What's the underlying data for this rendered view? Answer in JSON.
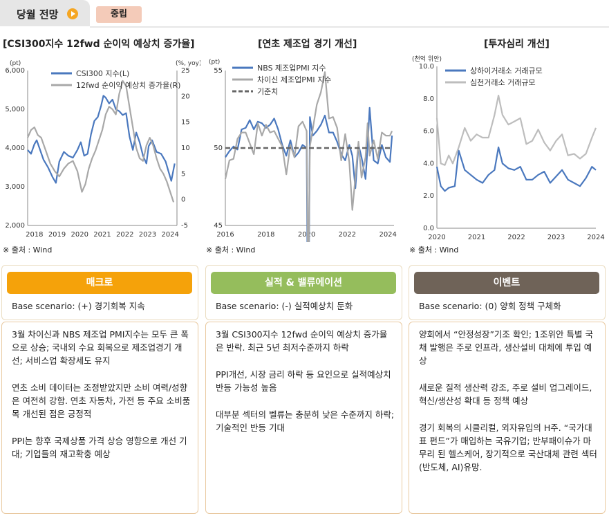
{
  "header": {
    "title": "당월 전망",
    "badge": "중립"
  },
  "charts": [
    {
      "title": "[CSI300지수 12fwd 순이익 예상치 증가율]",
      "source": "※ 출처 : Wind"
    },
    {
      "title": "[연초 제조업 경기 개선]",
      "source": "※ 출처 : Wind"
    },
    {
      "title": "[투자심리 개선]",
      "source": "※ 출처 : Wind"
    }
  ],
  "chart_data": [
    {
      "type": "line",
      "x_range": [
        2017.7,
        2024.3
      ],
      "xticks": [
        "2018",
        "2019",
        "2020",
        "2021",
        "2022",
        "2023",
        "2024"
      ],
      "left_axis": {
        "unit": "(pt)",
        "ticks": [
          "2,000",
          "3,000",
          "4,000",
          "5,000",
          "6,000"
        ],
        "ylim": [
          2000,
          6000
        ]
      },
      "right_axis": {
        "unit": "(%, yoy)",
        "ticks": [
          "-5",
          "0",
          "5",
          "10",
          "15",
          "20",
          "25"
        ],
        "ylim": [
          -5,
          25
        ]
      },
      "series": [
        {
          "name": "CSI300 지수(L)",
          "axis": "left",
          "color": "#4a78be",
          "x": [
            2017.7,
            2017.85,
            2018.0,
            2018.1,
            2018.25,
            2018.4,
            2018.6,
            2018.8,
            2018.95,
            2019.1,
            2019.3,
            2019.5,
            2019.7,
            2019.9,
            2020.05,
            2020.2,
            2020.35,
            2020.5,
            2020.65,
            2020.8,
            2020.95,
            2021.05,
            2021.15,
            2021.3,
            2021.45,
            2021.6,
            2021.75,
            2021.9,
            2022.05,
            2022.2,
            2022.35,
            2022.5,
            2022.65,
            2022.8,
            2022.95,
            2023.05,
            2023.2,
            2023.4,
            2023.6,
            2023.8,
            2023.95,
            2024.05,
            2024.2
          ],
          "y": [
            3950,
            3850,
            4100,
            4200,
            3950,
            3700,
            3500,
            3250,
            3100,
            3650,
            3900,
            3800,
            3750,
            3950,
            4150,
            3800,
            3850,
            4350,
            4700,
            4800,
            5100,
            5350,
            5300,
            5150,
            5250,
            5000,
            4950,
            4850,
            4900,
            4300,
            3950,
            4400,
            4150,
            3800,
            3600,
            4050,
            4200,
            3900,
            3850,
            3650,
            3350,
            3150,
            3600
          ]
        },
        {
          "name": "12fwd 순이익 예상치 증가율(R)",
          "axis": "right",
          "color": "#a8a8a8",
          "x": [
            2017.7,
            2017.85,
            2018.0,
            2018.15,
            2018.3,
            2018.5,
            2018.7,
            2018.9,
            2019.1,
            2019.3,
            2019.5,
            2019.7,
            2019.9,
            2020.1,
            2020.25,
            2020.4,
            2020.55,
            2020.7,
            2020.85,
            2021.0,
            2021.15,
            2021.3,
            2021.45,
            2021.6,
            2021.75,
            2021.9,
            2022.05,
            2022.2,
            2022.35,
            2022.5,
            2022.65,
            2022.8,
            2022.95,
            2023.1,
            2023.25,
            2023.4,
            2023.55,
            2023.7,
            2023.85,
            2024.0,
            2024.15
          ],
          "y": [
            12,
            13.5,
            14,
            12.5,
            12,
            9.5,
            7,
            5.5,
            4.5,
            6,
            7,
            7.5,
            5.5,
            1.5,
            3,
            6,
            8,
            9.5,
            11.5,
            13.5,
            16.5,
            18,
            17.5,
            16.5,
            20.5,
            23,
            22,
            18,
            14,
            10,
            8,
            7.5,
            10.5,
            12,
            10.5,
            8,
            6,
            5,
            3.5,
            1.5,
            -0.5
          ]
        }
      ]
    },
    {
      "type": "line",
      "x_range": [
        2016.0,
        2024.3
      ],
      "xticks": [
        "2016",
        "2018",
        "2020",
        "2022",
        "2024"
      ],
      "left_axis": {
        "unit": "(pt)",
        "ticks": [
          "45",
          "50",
          "55"
        ],
        "ylim": [
          45,
          55
        ]
      },
      "series": [
        {
          "name": "NBS 제조업PMI 지수",
          "color": "#4a78be",
          "x": [
            2016.0,
            2016.2,
            2016.4,
            2016.6,
            2016.8,
            2017.0,
            2017.2,
            2017.4,
            2017.6,
            2017.8,
            2018.0,
            2018.2,
            2018.4,
            2018.6,
            2018.8,
            2019.0,
            2019.2,
            2019.4,
            2019.6,
            2019.8,
            2020.0,
            2020.08,
            2020.16,
            2020.3,
            2020.5,
            2020.7,
            2020.9,
            2021.1,
            2021.3,
            2021.5,
            2021.7,
            2021.9,
            2022.1,
            2022.25,
            2022.4,
            2022.55,
            2022.7,
            2022.9,
            2023.0,
            2023.1,
            2023.3,
            2023.5,
            2023.7,
            2023.9,
            2024.1,
            2024.2
          ],
          "y": [
            49.4,
            49.8,
            50.1,
            49.9,
            51.2,
            51.3,
            51.8,
            51.2,
            51.7,
            51.6,
            51.3,
            51.5,
            51.9,
            51.2,
            50.2,
            49.5,
            50.5,
            49.4,
            49.7,
            50.2,
            50.0,
            35.7,
            52.0,
            50.8,
            51.1,
            51.5,
            52.1,
            51.0,
            51.0,
            50.4,
            49.6,
            49.2,
            50.2,
            49.5,
            47.4,
            50.2,
            49.4,
            48.0,
            50.1,
            52.6,
            49.2,
            49.0,
            50.2,
            49.4,
            49.1,
            50.8
          ]
        },
        {
          "name": "차이신 제조업PMI 지수",
          "color": "#a8a8a8",
          "x": [
            2016.0,
            2016.2,
            2016.4,
            2016.6,
            2016.8,
            2017.0,
            2017.2,
            2017.4,
            2017.6,
            2017.8,
            2018.0,
            2018.2,
            2018.4,
            2018.6,
            2018.8,
            2019.0,
            2019.2,
            2019.4,
            2019.6,
            2019.8,
            2020.0,
            2020.08,
            2020.16,
            2020.3,
            2020.5,
            2020.7,
            2020.9,
            2021.1,
            2021.3,
            2021.5,
            2021.7,
            2021.9,
            2022.1,
            2022.25,
            2022.4,
            2022.55,
            2022.7,
            2022.9,
            2023.0,
            2023.1,
            2023.3,
            2023.5,
            2023.7,
            2023.9,
            2024.1,
            2024.2
          ],
          "y": [
            48.0,
            49.2,
            49.3,
            50.6,
            51.0,
            51.0,
            50.3,
            49.6,
            51.6,
            50.8,
            51.5,
            51.0,
            51.1,
            50.6,
            50.1,
            48.3,
            50.2,
            49.4,
            51.4,
            51.7,
            51.1,
            40.3,
            50.1,
            51.2,
            52.8,
            53.6,
            54.9,
            51.9,
            52.0,
            51.3,
            49.2,
            50.9,
            49.1,
            46.0,
            48.1,
            50.4,
            48.1,
            49.4,
            51.6,
            49.5,
            50.5,
            49.3,
            51.0,
            50.8,
            50.8,
            51.1
          ]
        },
        {
          "name": "기준치",
          "color": "#666666",
          "dashed": true,
          "x": [
            2016.0,
            2024.2
          ],
          "y": [
            50,
            50
          ]
        }
      ]
    },
    {
      "type": "line",
      "x_range": [
        2020.0,
        2024.0
      ],
      "xticks": [
        "2020",
        "2021",
        "2022",
        "2023",
        "2024"
      ],
      "left_axis": {
        "unit": "(천억 위안)",
        "ticks": [
          "0.0",
          "2.0",
          "4.0",
          "6.0",
          "8.0",
          "10.0"
        ],
        "ylim": [
          0,
          10
        ]
      },
      "series": [
        {
          "name": "상하이거래소 거래규모",
          "color": "#4a78be",
          "x": [
            2020.0,
            2020.1,
            2020.2,
            2020.3,
            2020.45,
            2020.55,
            2020.7,
            2020.85,
            2021.0,
            2021.15,
            2021.3,
            2021.45,
            2021.55,
            2021.65,
            2021.8,
            2021.95,
            2022.1,
            2022.25,
            2022.4,
            2022.55,
            2022.7,
            2022.85,
            2023.0,
            2023.15,
            2023.3,
            2023.45,
            2023.6,
            2023.75,
            2023.9,
            2024.0
          ],
          "y": [
            3.8,
            2.6,
            2.3,
            2.5,
            2.6,
            4.8,
            3.6,
            3.3,
            3.0,
            2.8,
            3.3,
            3.6,
            5.0,
            4.0,
            3.7,
            3.6,
            3.8,
            3.0,
            3.0,
            3.3,
            3.5,
            2.8,
            3.2,
            3.6,
            3.0,
            2.8,
            2.6,
            3.1,
            3.8,
            3.6
          ]
        },
        {
          "name": "심천거래소 거래규모",
          "color": "#bdbdbd",
          "x": [
            2020.0,
            2020.1,
            2020.2,
            2020.3,
            2020.4,
            2020.55,
            2020.7,
            2020.85,
            2021.0,
            2021.15,
            2021.3,
            2021.45,
            2021.55,
            2021.65,
            2021.8,
            2021.95,
            2022.1,
            2022.25,
            2022.4,
            2022.55,
            2022.7,
            2022.85,
            2023.0,
            2023.15,
            2023.3,
            2023.45,
            2023.6,
            2023.75,
            2023.9,
            2024.0
          ],
          "y": [
            6.8,
            4.0,
            3.9,
            4.5,
            4.0,
            5.0,
            6.2,
            5.4,
            5.8,
            5.6,
            5.6,
            7.0,
            8.2,
            7.0,
            6.4,
            6.6,
            6.8,
            5.2,
            5.4,
            6.1,
            5.3,
            4.8,
            5.4,
            5.8,
            4.5,
            4.6,
            4.3,
            4.6,
            5.6,
            6.2
          ]
        }
      ]
    }
  ],
  "columns": [
    {
      "head": "매크로",
      "color": "#f5a20a",
      "scenario": "Base scenario: (+) 경기회복 지속",
      "paragraphs": [
        "3월 차이신과 NBS 제조업 PMI지수는 모두 큰 폭으로 상승; 국내외 수요 회복으로 제조업경기 개선; 서비스업 확장세도 유지",
        "연초 소비 데이터는 조정받았지만 소비 여력/성향은 여전히 강함. 연초 자동차, 가전 등 주요 소비품목 개선된 점은 긍정적",
        "PPI는 향후 국제상품 가격 상승 영향으로 개선 기대; 기업들의 재고확충 예상"
      ]
    },
    {
      "head": "실적 & 밸류에이션",
      "color": "#95bd5c",
      "scenario": "Base scenario: (-) 실적예상치 둔화",
      "paragraphs": [
        "3월 CSI300지수 12fwd 순이익 예상치 증가율은 반락. 최근 5년 최저수준까지 하락",
        "PPI개선, 시장 금리 하락 등 요인으로 실적예상치 반등 가능성 높음",
        "대부분 섹터의 벨류는 충분히 낮은 수준까지 하락; 기술적인 반등 기대"
      ]
    },
    {
      "head": "이벤트",
      "color": "#6f6358",
      "scenario": "Base scenario: (0) 양회 정책 구체화",
      "paragraphs": [
        "양회에서 “안정성장”기조 확인; 1조위안 특별 국채 발행은 주로 인프라, 생산설비 대체에 투입 예상",
        "새로운 질적 생산력 강조, 주로 설비 업그레이드, 혁신/생산성 확대 등 정책 예상",
        "경기 회복의 시클리컬, 외자유입의 H주. “국가대표 펀드”가 매입하는 국유기업; 반부패이슈가 마무리 된 헬스케어, 장기적으로 국산대체 관련 섹터(반도체, AI)유망."
      ]
    }
  ]
}
